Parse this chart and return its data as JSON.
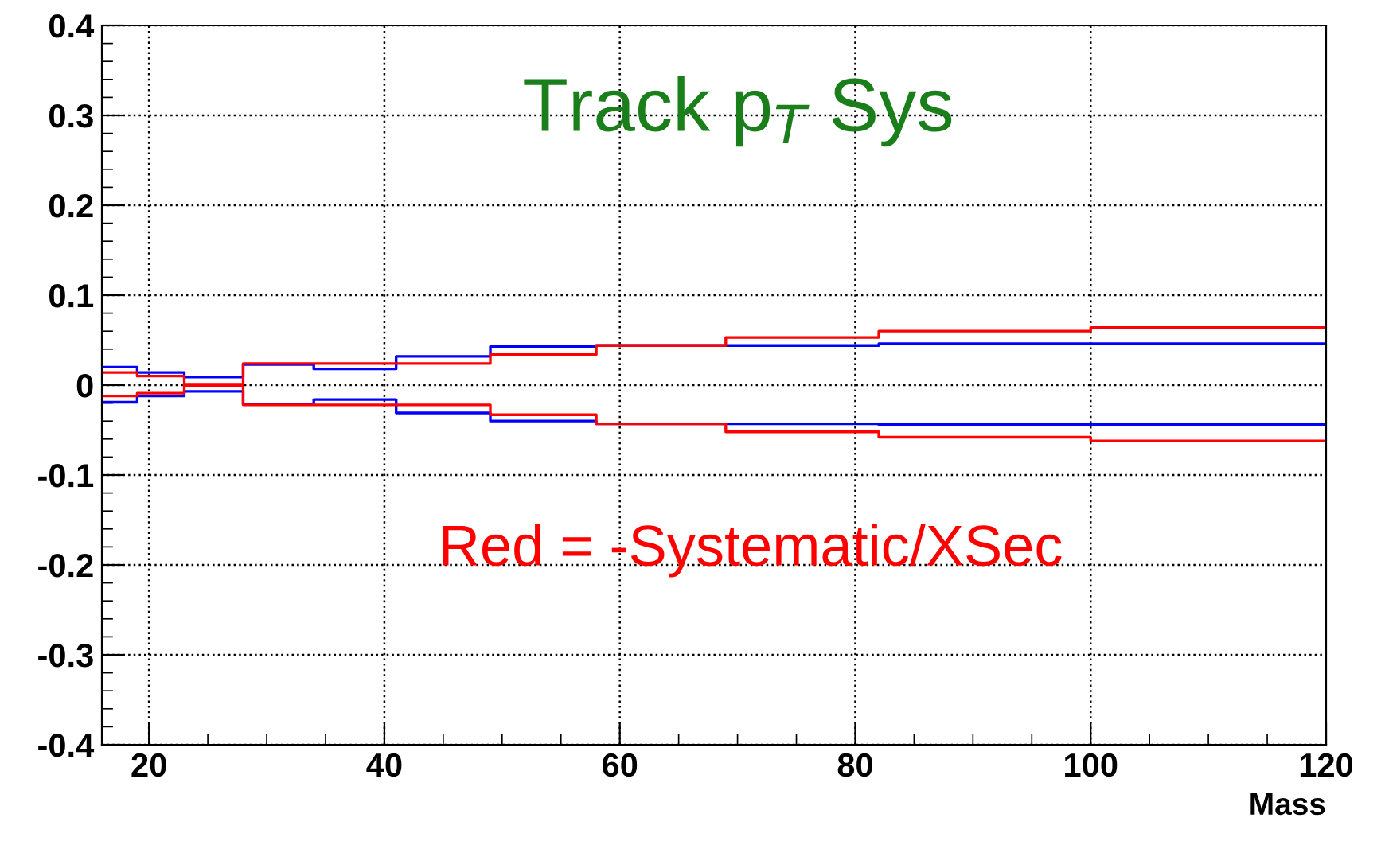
{
  "chart_data": {
    "type": "step",
    "title": "Track p$_{T}$ Sys",
    "xlabel": "Mass",
    "annotations": [
      "Red = -Systematic/XSec"
    ],
    "x": [
      16,
      19,
      23,
      28,
      34,
      41,
      49,
      58,
      69,
      82,
      100,
      120
    ],
    "series": [
      {
        "color": "#0000ff",
        "values": [
          0.02,
          0.014,
          0.009,
          0.023,
          0.018,
          0.032,
          0.043,
          0.044,
          0.044,
          0.046,
          0.046,
          0.046
        ]
      },
      {
        "color": "#0000ff",
        "values": [
          -0.019,
          -0.012,
          -0.007,
          -0.021,
          -0.016,
          -0.031,
          -0.04,
          -0.043,
          -0.043,
          -0.044,
          -0.044,
          -0.044
        ]
      },
      {
        "color": "#ff0000",
        "values": [
          0.014,
          0.01,
          0.001,
          0.024,
          0.024,
          0.024,
          0.034,
          0.044,
          0.053,
          0.06,
          0.064,
          0.064
        ]
      },
      {
        "color": "#ff0000",
        "values": [
          -0.012,
          -0.009,
          -0.001,
          -0.022,
          -0.022,
          -0.022,
          -0.033,
          -0.043,
          -0.052,
          -0.058,
          -0.062,
          -0.062
        ]
      }
    ],
    "xlim": [
      16,
      120
    ],
    "ylim": [
      -0.4,
      0.4
    ],
    "xticks": [
      20,
      40,
      60,
      80,
      100,
      120
    ],
    "yticks": [
      -0.4,
      -0.3,
      -0.2,
      -0.1,
      0,
      0.1,
      0.2,
      0.3,
      0.4
    ],
    "grid": true,
    "legend": false,
    "line_style": "solid",
    "marker": "none"
  }
}
